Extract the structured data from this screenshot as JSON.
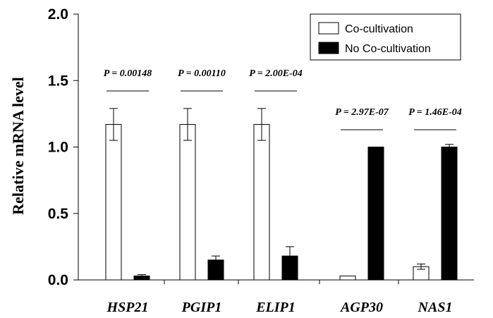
{
  "chart_data": {
    "type": "bar",
    "title": "",
    "xlabel": "",
    "ylabel": "Relative mRNA level",
    "ylim": [
      0,
      2.0
    ],
    "yticks": [
      "0.0",
      "0.5",
      "1.0",
      "1.5",
      "2.0"
    ],
    "categories": [
      "HSP21",
      "PGIP1",
      "ELIP1",
      "AGP30",
      "NAS1"
    ],
    "series": [
      {
        "name": "Co-cultivation",
        "color": "#ffffff",
        "values": [
          1.17,
          1.17,
          1.17,
          0.03,
          0.1
        ],
        "errors": [
          0.12,
          0.12,
          0.12,
          0.0,
          0.02
        ]
      },
      {
        "name": "No Co-cultivation",
        "color": "#000000",
        "values": [
          0.03,
          0.15,
          0.18,
          1.0,
          1.0
        ],
        "errors": [
          0.01,
          0.03,
          0.07,
          0.0,
          0.02
        ]
      }
    ],
    "p_values": [
      "P = 0.00148",
      "P = 0.00110",
      "P = 2.00E-04",
      "P = 2.97E-07",
      "P = 1.46E-04"
    ],
    "legend_position": "top-right",
    "grid": false
  }
}
